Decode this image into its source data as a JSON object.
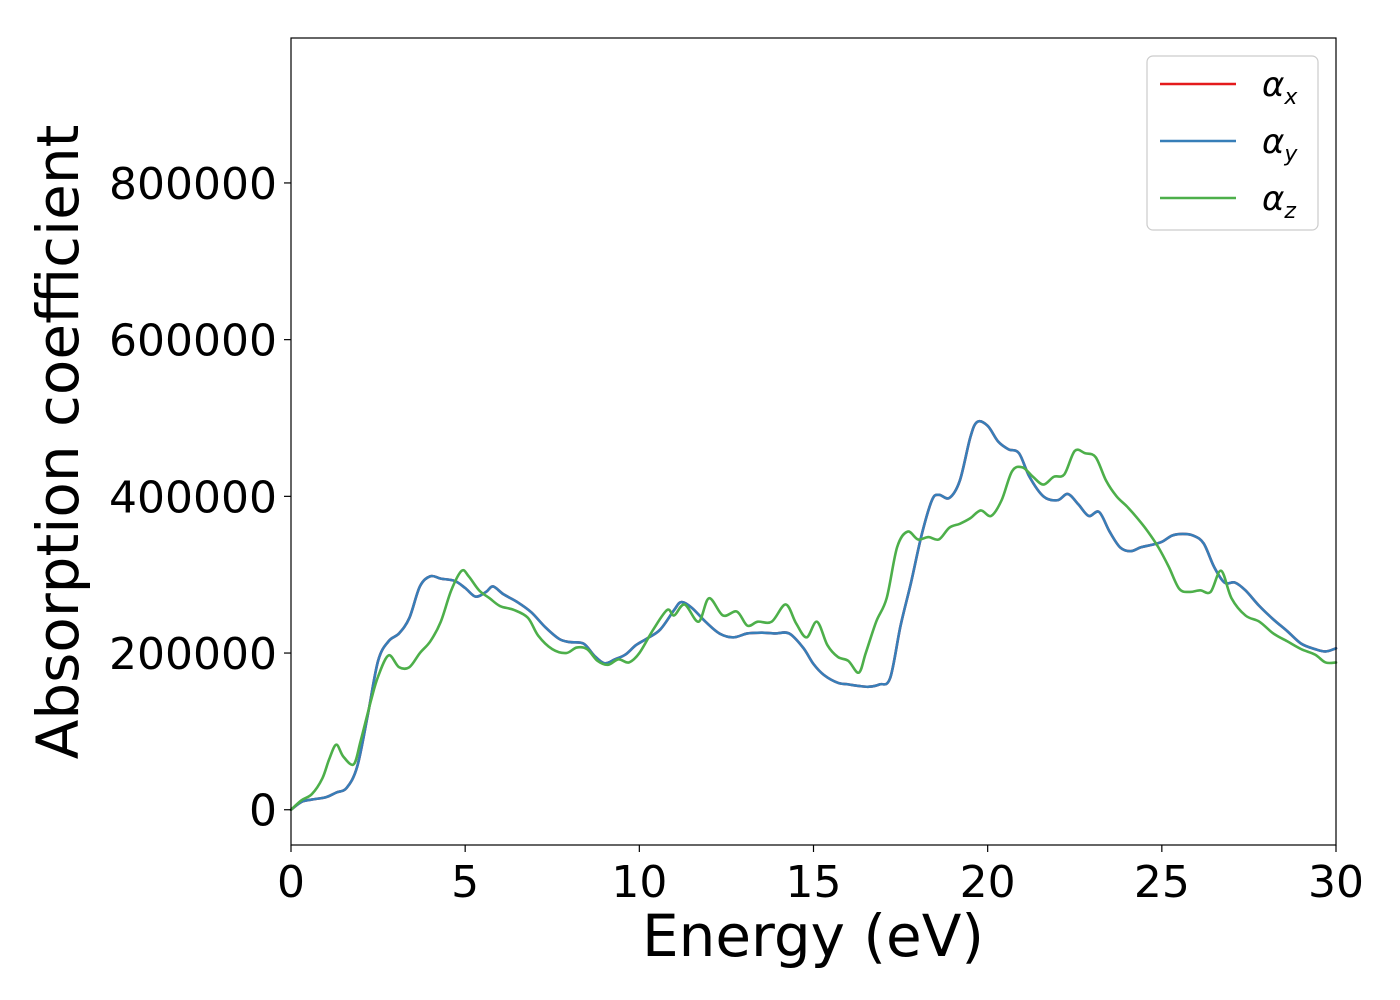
{
  "chart_data": {
    "type": "line",
    "xlabel": "Energy (eV)",
    "ylabel": "Absorption coefficient",
    "xlim": [
      0,
      30
    ],
    "ylim": [
      -45000,
      985000
    ],
    "xticks": [
      0,
      5,
      10,
      15,
      20,
      25,
      30
    ],
    "yticks": [
      0,
      200000,
      400000,
      600000,
      800000
    ],
    "xtick_labels": [
      "0",
      "5",
      "10",
      "15",
      "20",
      "25",
      "30"
    ],
    "ytick_labels": [
      "0",
      "200000",
      "400000",
      "600000",
      "800000"
    ],
    "grid": false,
    "legend_position": "top-right",
    "series": [
      {
        "name": "x",
        "color": "#e41a1c",
        "x": [
          0,
          0.3,
          0.6,
          1.0,
          1.3,
          1.6,
          1.9,
          2.2,
          2.5,
          2.8,
          3.1,
          3.4,
          3.7,
          4.0,
          4.3,
          4.7,
          5.0,
          5.3,
          5.6,
          5.8,
          6.1,
          6.5,
          6.9,
          7.3,
          7.7,
          8.0,
          8.4,
          8.7,
          9.0,
          9.3,
          9.6,
          9.9,
          10.2,
          10.6,
          11.0,
          11.2,
          11.5,
          11.9,
          12.3,
          12.7,
          13.1,
          13.5,
          13.9,
          14.3,
          14.7,
          15.0,
          15.3,
          15.7,
          16.0,
          16.3,
          16.6,
          16.9,
          17.2,
          17.5,
          17.8,
          18.1,
          18.4,
          18.6,
          18.9,
          19.2,
          19.5,
          19.7,
          20.0,
          20.3,
          20.6,
          20.9,
          21.2,
          21.6,
          22.0,
          22.3,
          22.6,
          22.9,
          23.2,
          23.5,
          23.8,
          24.1,
          24.4,
          24.7,
          25.0,
          25.3,
          25.6,
          25.9,
          26.2,
          26.5,
          26.8,
          27.1,
          27.4,
          27.8,
          28.2,
          28.6,
          29.0,
          29.4,
          29.7,
          30.0
        ],
        "values": [
          0,
          10000,
          13000,
          16000,
          22000,
          28000,
          55000,
          120000,
          190000,
          215000,
          225000,
          245000,
          285000,
          298000,
          295000,
          292000,
          283000,
          272000,
          278000,
          285000,
          275000,
          265000,
          252000,
          233000,
          218000,
          214000,
          212000,
          197000,
          187000,
          192000,
          198000,
          210000,
          218000,
          230000,
          255000,
          265000,
          258000,
          240000,
          225000,
          220000,
          225000,
          226000,
          225000,
          225000,
          207000,
          186000,
          172000,
          162000,
          160000,
          158000,
          157000,
          160000,
          168000,
          235000,
          290000,
          350000,
          395000,
          402000,
          398000,
          420000,
          475000,
          495000,
          490000,
          470000,
          460000,
          455000,
          425000,
          400000,
          395000,
          403000,
          390000,
          375000,
          380000,
          355000,
          335000,
          330000,
          335000,
          338000,
          342000,
          350000,
          352000,
          350000,
          340000,
          310000,
          290000,
          290000,
          280000,
          260000,
          243000,
          228000,
          212000,
          205000,
          202000,
          206000
        ]
      },
      {
        "name": "y",
        "color": "#377eb8",
        "x": [
          0,
          0.3,
          0.6,
          1.0,
          1.3,
          1.6,
          1.9,
          2.2,
          2.5,
          2.8,
          3.1,
          3.4,
          3.7,
          4.0,
          4.3,
          4.7,
          5.0,
          5.3,
          5.6,
          5.8,
          6.1,
          6.5,
          6.9,
          7.3,
          7.7,
          8.0,
          8.4,
          8.7,
          9.0,
          9.3,
          9.6,
          9.9,
          10.2,
          10.6,
          11.0,
          11.2,
          11.5,
          11.9,
          12.3,
          12.7,
          13.1,
          13.5,
          13.9,
          14.3,
          14.7,
          15.0,
          15.3,
          15.7,
          16.0,
          16.3,
          16.6,
          16.9,
          17.2,
          17.5,
          17.8,
          18.1,
          18.4,
          18.6,
          18.9,
          19.2,
          19.5,
          19.7,
          20.0,
          20.3,
          20.6,
          20.9,
          21.2,
          21.6,
          22.0,
          22.3,
          22.6,
          22.9,
          23.2,
          23.5,
          23.8,
          24.1,
          24.4,
          24.7,
          25.0,
          25.3,
          25.6,
          25.9,
          26.2,
          26.5,
          26.8,
          27.1,
          27.4,
          27.8,
          28.2,
          28.6,
          29.0,
          29.4,
          29.7,
          30.0
        ],
        "values": [
          0,
          10000,
          13000,
          16000,
          22000,
          28000,
          55000,
          120000,
          190000,
          215000,
          225000,
          245000,
          285000,
          298000,
          295000,
          292000,
          283000,
          272000,
          278000,
          285000,
          275000,
          265000,
          252000,
          233000,
          218000,
          214000,
          212000,
          197000,
          187000,
          192000,
          198000,
          210000,
          218000,
          230000,
          255000,
          265000,
          258000,
          240000,
          225000,
          220000,
          225000,
          226000,
          225000,
          225000,
          207000,
          186000,
          172000,
          162000,
          160000,
          158000,
          157000,
          160000,
          168000,
          235000,
          290000,
          350000,
          395000,
          402000,
          398000,
          420000,
          475000,
          495000,
          490000,
          470000,
          460000,
          455000,
          425000,
          400000,
          395000,
          403000,
          390000,
          375000,
          380000,
          355000,
          335000,
          330000,
          335000,
          338000,
          342000,
          350000,
          352000,
          350000,
          340000,
          310000,
          290000,
          290000,
          280000,
          260000,
          243000,
          228000,
          212000,
          205000,
          202000,
          206000
        ]
      },
      {
        "name": "z",
        "color": "#4daf4a",
        "x": [
          0,
          0.3,
          0.6,
          0.9,
          1.1,
          1.3,
          1.5,
          1.8,
          2.0,
          2.3,
          2.5,
          2.8,
          3.1,
          3.4,
          3.7,
          4.0,
          4.3,
          4.6,
          4.9,
          5.1,
          5.4,
          5.7,
          6.0,
          6.4,
          6.8,
          7.1,
          7.5,
          7.9,
          8.2,
          8.5,
          8.8,
          9.1,
          9.4,
          9.7,
          10.0,
          10.4,
          10.8,
          11.0,
          11.3,
          11.7,
          12.0,
          12.4,
          12.8,
          13.1,
          13.4,
          13.8,
          14.2,
          14.5,
          14.8,
          15.1,
          15.4,
          15.7,
          16.0,
          16.3,
          16.5,
          16.8,
          17.1,
          17.4,
          17.7,
          18.0,
          18.3,
          18.6,
          18.9,
          19.2,
          19.5,
          19.8,
          20.1,
          20.4,
          20.7,
          21.0,
          21.3,
          21.6,
          21.9,
          22.2,
          22.5,
          22.8,
          23.1,
          23.4,
          23.7,
          24.0,
          24.3,
          24.6,
          24.9,
          25.2,
          25.5,
          25.8,
          26.1,
          26.4,
          26.7,
          27.0,
          27.4,
          27.8,
          28.2,
          28.6,
          29.0,
          29.4,
          29.7,
          30.0
        ],
        "values": [
          0,
          12000,
          20000,
          40000,
          65000,
          83000,
          68000,
          58000,
          88000,
          140000,
          170000,
          197000,
          182000,
          182000,
          200000,
          215000,
          240000,
          280000,
          305000,
          298000,
          280000,
          270000,
          260000,
          255000,
          245000,
          222000,
          205000,
          200000,
          207000,
          205000,
          190000,
          185000,
          192000,
          188000,
          200000,
          230000,
          255000,
          248000,
          262000,
          240000,
          270000,
          248000,
          253000,
          235000,
          240000,
          240000,
          262000,
          238000,
          220000,
          240000,
          210000,
          195000,
          190000,
          175000,
          200000,
          240000,
          270000,
          335000,
          355000,
          345000,
          348000,
          345000,
          360000,
          365000,
          372000,
          382000,
          375000,
          395000,
          432000,
          437000,
          425000,
          415000,
          425000,
          428000,
          458000,
          455000,
          450000,
          420000,
          400000,
          387000,
          372000,
          355000,
          335000,
          310000,
          282000,
          278000,
          280000,
          278000,
          305000,
          270000,
          248000,
          240000,
          225000,
          215000,
          205000,
          198000,
          188000,
          188000
        ]
      }
    ]
  }
}
